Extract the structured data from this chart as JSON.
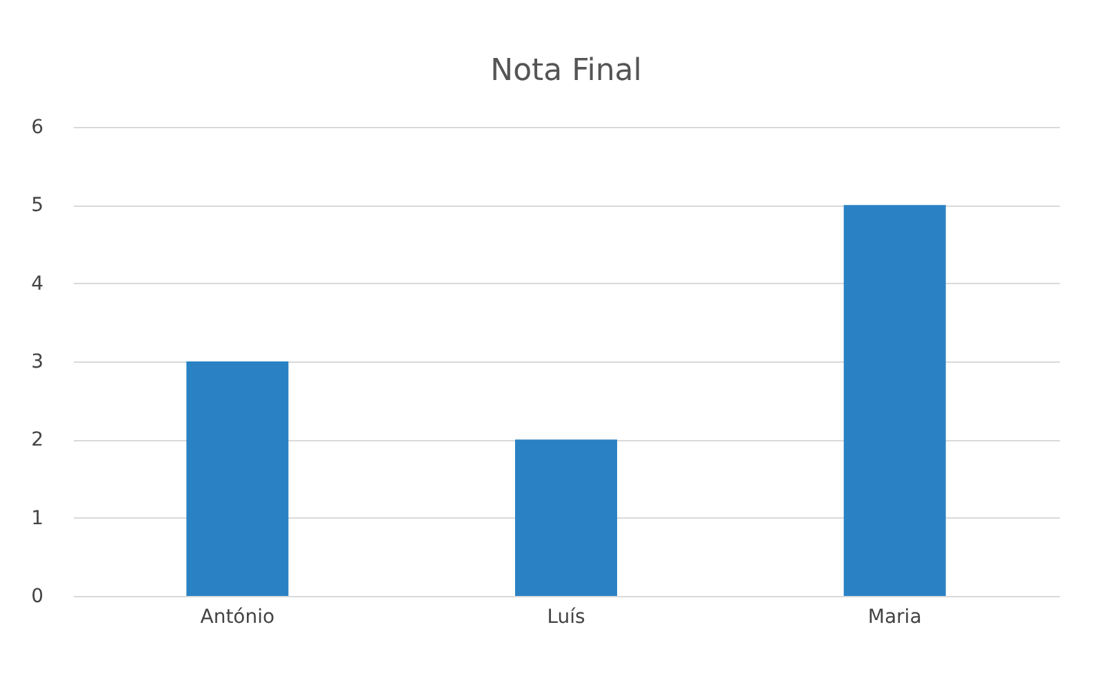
{
  "chart_data": {
    "type": "bar",
    "title": "Nota Final",
    "categories": [
      "António",
      "Luís",
      "Maria"
    ],
    "values": [
      3,
      2,
      5
    ],
    "color": "#2a82c4",
    "ylim": [
      0,
      6
    ],
    "yticks": [
      0,
      1,
      2,
      3,
      4,
      5,
      6
    ],
    "grid": "y"
  }
}
